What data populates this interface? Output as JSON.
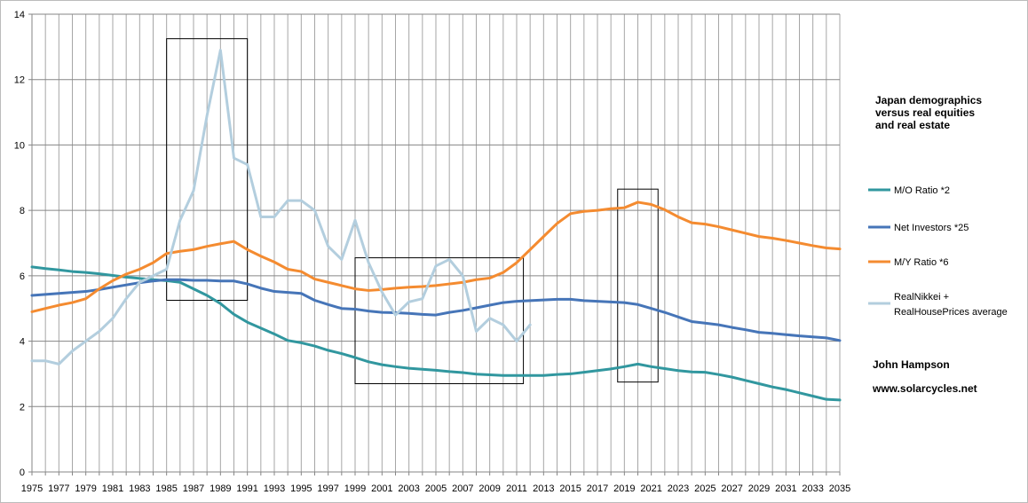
{
  "chart_data": {
    "type": "line",
    "title": "",
    "xlabel": "",
    "ylabel": "",
    "xlim": [
      1975,
      2035
    ],
    "ylim": [
      0,
      14
    ],
    "grid": true,
    "legend_position": "right",
    "y_ticks": [
      0,
      2,
      4,
      6,
      8,
      10,
      12,
      14
    ],
    "x_ticks": [
      1975,
      1977,
      1979,
      1981,
      1983,
      1985,
      1987,
      1989,
      1991,
      1993,
      1995,
      1997,
      1999,
      2001,
      2003,
      2005,
      2007,
      2009,
      2011,
      2013,
      2015,
      2017,
      2019,
      2021,
      2023,
      2025,
      2027,
      2029,
      2031,
      2033,
      2035
    ],
    "annotation_title": [
      "Japan demographics",
      "versus real equities",
      "and real estate"
    ],
    "credit_name": "John Hampson",
    "credit_url": "www.solarcycles.net",
    "highlight_boxes": [
      {
        "x0": 1985,
        "x1": 1991,
        "y0": 5.25,
        "y1": 13.25
      },
      {
        "x0": 1999,
        "x1": 2011.5,
        "y0": 2.7,
        "y1": 6.55
      },
      {
        "x0": 2018.5,
        "x1": 2021.5,
        "y0": 2.75,
        "y1": 8.65
      }
    ],
    "series": [
      {
        "name": "M/O Ratio  *2",
        "color": "#31979f",
        "x": [
          1975,
          1976,
          1977,
          1978,
          1979,
          1980,
          1981,
          1982,
          1983,
          1984,
          1985,
          1986,
          1987,
          1988,
          1989,
          1990,
          1991,
          1992,
          1993,
          1994,
          1995,
          1996,
          1997,
          1998,
          1999,
          2000,
          2001,
          2002,
          2003,
          2004,
          2005,
          2006,
          2007,
          2008,
          2009,
          2010,
          2011,
          2012,
          2013,
          2014,
          2015,
          2016,
          2017,
          2018,
          2019,
          2020,
          2021,
          2022,
          2023,
          2024,
          2025,
          2026,
          2027,
          2028,
          2029,
          2030,
          2031,
          2032,
          2033,
          2034,
          2035
        ],
        "values": [
          6.27,
          6.22,
          6.18,
          6.13,
          6.1,
          6.06,
          6.01,
          5.96,
          5.92,
          5.88,
          5.85,
          5.8,
          5.6,
          5.4,
          5.15,
          4.82,
          4.58,
          4.4,
          4.22,
          4.02,
          3.95,
          3.85,
          3.72,
          3.62,
          3.5,
          3.37,
          3.28,
          3.22,
          3.17,
          3.14,
          3.11,
          3.07,
          3.04,
          2.99,
          2.97,
          2.95,
          2.95,
          2.95,
          2.95,
          2.98,
          3.0,
          3.05,
          3.1,
          3.15,
          3.22,
          3.3,
          3.22,
          3.16,
          3.1,
          3.06,
          3.05,
          2.98,
          2.9,
          2.8,
          2.7,
          2.6,
          2.52,
          2.42,
          2.32,
          2.22,
          2.2
        ]
      },
      {
        "name": "Net Investors *25",
        "color": "#4675b8",
        "x": [
          1975,
          1976,
          1977,
          1978,
          1979,
          1980,
          1981,
          1982,
          1983,
          1984,
          1985,
          1986,
          1987,
          1988,
          1989,
          1990,
          1991,
          1992,
          1993,
          1994,
          1995,
          1996,
          1997,
          1998,
          1999,
          2000,
          2001,
          2002,
          2003,
          2004,
          2005,
          2006,
          2007,
          2008,
          2009,
          2010,
          2011,
          2012,
          2013,
          2014,
          2015,
          2016,
          2017,
          2018,
          2019,
          2020,
          2021,
          2022,
          2023,
          2024,
          2025,
          2026,
          2027,
          2028,
          2029,
          2030,
          2031,
          2032,
          2033,
          2034,
          2035
        ],
        "values": [
          5.4,
          5.43,
          5.46,
          5.49,
          5.52,
          5.58,
          5.65,
          5.72,
          5.79,
          5.84,
          5.88,
          5.88,
          5.86,
          5.86,
          5.84,
          5.84,
          5.75,
          5.62,
          5.52,
          5.49,
          5.46,
          5.25,
          5.12,
          5.0,
          4.98,
          4.92,
          4.88,
          4.87,
          4.85,
          4.82,
          4.8,
          4.88,
          4.94,
          5.02,
          5.1,
          5.18,
          5.22,
          5.24,
          5.26,
          5.28,
          5.28,
          5.24,
          5.22,
          5.2,
          5.18,
          5.12,
          5.0,
          4.88,
          4.74,
          4.6,
          4.55,
          4.5,
          4.42,
          4.35,
          4.27,
          4.24,
          4.2,
          4.16,
          4.13,
          4.1,
          4.02
        ]
      },
      {
        "name": "M/Y Ratio *6",
        "color": "#f48b30",
        "x": [
          1975,
          1976,
          1977,
          1978,
          1979,
          1980,
          1981,
          1982,
          1983,
          1984,
          1985,
          1986,
          1987,
          1988,
          1989,
          1990,
          1991,
          1992,
          1993,
          1994,
          1995,
          1996,
          1997,
          1998,
          1999,
          2000,
          2001,
          2002,
          2003,
          2004,
          2005,
          2006,
          2007,
          2008,
          2009,
          2010,
          2011,
          2012,
          2013,
          2014,
          2015,
          2016,
          2017,
          2018,
          2019,
          2020,
          2021,
          2022,
          2023,
          2024,
          2025,
          2026,
          2027,
          2028,
          2029,
          2030,
          2031,
          2032,
          2033,
          2034,
          2035
        ],
        "values": [
          4.9,
          5.0,
          5.1,
          5.18,
          5.3,
          5.6,
          5.85,
          6.05,
          6.2,
          6.4,
          6.68,
          6.75,
          6.8,
          6.9,
          6.98,
          7.05,
          6.8,
          6.6,
          6.42,
          6.2,
          6.13,
          5.9,
          5.8,
          5.7,
          5.6,
          5.55,
          5.58,
          5.62,
          5.65,
          5.67,
          5.7,
          5.75,
          5.8,
          5.88,
          5.93,
          6.1,
          6.4,
          6.8,
          7.2,
          7.6,
          7.9,
          7.97,
          8.0,
          8.05,
          8.08,
          8.25,
          8.18,
          8.02,
          7.8,
          7.62,
          7.58,
          7.5,
          7.4,
          7.3,
          7.2,
          7.15,
          7.08,
          7.0,
          6.92,
          6.85,
          6.82
        ]
      },
      {
        "name": "RealNikkei + RealHousePrices average",
        "color": "#b3cede",
        "x": [
          1975,
          1976,
          1977,
          1978,
          1979,
          1980,
          1981,
          1982,
          1983,
          1984,
          1985,
          1986,
          1987,
          1988,
          1989,
          1990,
          1991,
          1992,
          1993,
          1994,
          1995,
          1996,
          1997,
          1998,
          1999,
          2000,
          2001,
          2002,
          2003,
          2004,
          2005,
          2006,
          2007,
          2008,
          2009,
          2010,
          2011,
          2012
        ],
        "values": [
          3.4,
          3.4,
          3.3,
          3.7,
          4.0,
          4.3,
          4.7,
          5.3,
          5.8,
          6.0,
          6.2,
          7.7,
          8.6,
          10.9,
          12.9,
          9.6,
          9.4,
          7.8,
          7.8,
          8.3,
          8.3,
          8.0,
          6.9,
          6.5,
          7.7,
          6.4,
          5.5,
          4.8,
          5.2,
          5.3,
          6.3,
          6.5,
          6.0,
          4.3,
          4.7,
          4.5,
          4.0,
          4.5
        ]
      }
    ]
  }
}
